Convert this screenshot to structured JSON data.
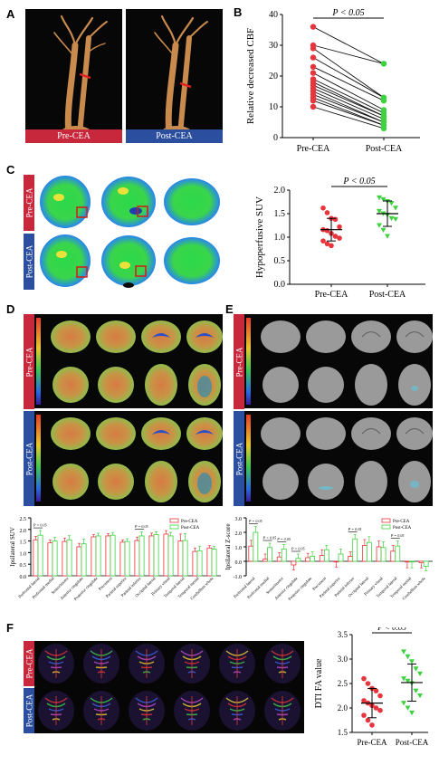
{
  "panels": {
    "A": "A",
    "B": "B",
    "C": "C",
    "D": "D",
    "E": "E",
    "F": "F"
  },
  "panel_a": {
    "pre": "Pre-CEA",
    "post": "Post-CEA"
  },
  "panel_c": {
    "pre": "Pre-CEA",
    "post": "Post-CEA"
  },
  "panel_d": {
    "pre": "Pre-CEA",
    "post": "Post-CEA"
  },
  "panel_e": {
    "pre": "Pre-CEA",
    "post": "Post-CEA"
  },
  "panel_f": {
    "pre": "Pre-CEA",
    "post": "Post-CEA"
  },
  "colors": {
    "pre": "#e8343c",
    "post": "#3fd23f",
    "red_strip": "#c8283c",
    "blue_strip": "#2b4f9e"
  },
  "chart_data": [
    {
      "id": "B",
      "type": "line",
      "ylabel": "Relative decreased CBF",
      "categories": [
        "Pre-CEA",
        "Post-CEA"
      ],
      "ylim": [
        0,
        40
      ],
      "yticks": [
        0,
        10,
        20,
        30,
        40
      ],
      "annotation": "P < 0.05",
      "pairs": [
        [
          36,
          24
        ],
        [
          30,
          24
        ],
        [
          29,
          13
        ],
        [
          26,
          13
        ],
        [
          23,
          12
        ],
        [
          21,
          9
        ],
        [
          19,
          8
        ],
        [
          18,
          7
        ],
        [
          17,
          7
        ],
        [
          16,
          6
        ],
        [
          15,
          5
        ],
        [
          14,
          5
        ],
        [
          13,
          4
        ],
        [
          12,
          4
        ],
        [
          10,
          3
        ]
      ]
    },
    {
      "id": "C",
      "type": "scatter",
      "ylabel": "Hypoperfusive SUV",
      "categories": [
        "Pre-CEA",
        "Post-CEA"
      ],
      "ylim": [
        0.0,
        2.0
      ],
      "yticks": [
        0.0,
        0.5,
        1.0,
        1.5,
        2.0
      ],
      "annotation": "P < 0.05",
      "series": [
        {
          "values": [
            1.62,
            1.52,
            1.4,
            1.38,
            1.22,
            1.16,
            1.14,
            1.08,
            1.02,
            0.98,
            0.92,
            0.86,
            0.82
          ],
          "mean": 1.16,
          "sd": 0.24
        },
        {
          "values": [
            1.84,
            1.8,
            1.76,
            1.72,
            1.62,
            1.55,
            1.5,
            1.47,
            1.4,
            1.38,
            1.25,
            1.15,
            1.02
          ],
          "mean": 1.5,
          "sd": 0.27
        }
      ]
    },
    {
      "id": "D",
      "type": "bar",
      "ylabel": "Ipsilateral SUV",
      "ylim": [
        0,
        2.5
      ],
      "yticks": [
        0.0,
        0.5,
        1.0,
        1.5,
        2.0,
        2.5
      ],
      "legend": [
        "Pre-CEA",
        "Post-CEA"
      ],
      "categories": [
        "Prefrontal lateral",
        "Prefrontal medial",
        "Sensorimotor",
        "Anterior cingulate",
        "Posterior cingulate",
        "Precuneus",
        "Parietal superior",
        "Parietal inferior",
        "Occipital lateral",
        "Primary visual",
        "Temporal lateral",
        "Temporal mesial",
        "Cerebellum whole"
      ],
      "series": [
        {
          "name": "Pre-CEA",
          "values": [
            1.55,
            1.42,
            1.48,
            1.25,
            1.68,
            1.72,
            1.45,
            1.52,
            1.72,
            1.8,
            1.5,
            1.05,
            1.2
          ]
        },
        {
          "name": "Post-CEA",
          "values": [
            1.75,
            1.5,
            1.55,
            1.38,
            1.72,
            1.75,
            1.48,
            1.72,
            1.78,
            1.72,
            1.52,
            1.08,
            1.15
          ]
        }
      ],
      "errors": [
        [
          0.15,
          0.2
        ],
        [
          0.12,
          0.15
        ],
        [
          0.15,
          0.18
        ],
        [
          0.15,
          0.2
        ],
        [
          0.1,
          0.12
        ],
        [
          0.1,
          0.12
        ],
        [
          0.1,
          0.12
        ],
        [
          0.15,
          0.18
        ],
        [
          0.12,
          0.12
        ],
        [
          0.15,
          0.15
        ],
        [
          0.3,
          0.3
        ],
        [
          0.15,
          0.2
        ],
        [
          0.1,
          0.12
        ]
      ],
      "annotations": [
        {
          "index": 0,
          "text": "P = 0.05"
        },
        {
          "index": 7,
          "text": "P = 0.05"
        }
      ]
    },
    {
      "id": "E",
      "type": "bar",
      "ylabel": "Ipsilateral Z-score",
      "ylim": [
        -1,
        3
      ],
      "yticks": [
        -1,
        0,
        1,
        2,
        3
      ],
      "legend": [
        "Pre-CEA",
        "Post-CEA"
      ],
      "categories": [
        "Prefrontal lateral",
        "Prefrontal medial",
        "Sensorimotor",
        "Anterior cingulate",
        "Posterior cingulate",
        "Precuneus",
        "Parietal superior",
        "Parietal inferior",
        "Occipital lateral",
        "Primary visual",
        "Temporal lateral",
        "Temporal mesial",
        "Cerebellum whole"
      ],
      "series": [
        {
          "name": "Pre-CEA",
          "values": [
            1.05,
            0.15,
            0.3,
            -0.25,
            0.25,
            0.4,
            -0.05,
            0.35,
            1.1,
            1.0,
            0.7,
            -0.05,
            -0.1
          ]
        },
        {
          "name": "Post-CEA",
          "values": [
            2.0,
            0.95,
            0.85,
            0.2,
            0.35,
            0.8,
            0.5,
            1.55,
            1.3,
            0.95,
            1.05,
            -0.05,
            -0.35
          ]
        }
      ],
      "errors": [
        [
          0.4,
          0.4
        ],
        [
          0.35,
          0.3
        ],
        [
          0.3,
          0.3
        ],
        [
          0.35,
          0.3
        ],
        [
          0.3,
          0.3
        ],
        [
          0.4,
          0.3
        ],
        [
          0.35,
          0.35
        ],
        [
          0.3,
          0.3
        ],
        [
          0.4,
          0.4
        ],
        [
          0.4,
          0.4
        ],
        [
          0.4,
          0.35
        ],
        [
          0.4,
          0.4
        ],
        [
          0.35,
          0.3
        ]
      ],
      "annotations": [
        {
          "index": 0,
          "text": "P = 0.05"
        },
        {
          "index": 1,
          "text": "P = 0.05"
        },
        {
          "index": 2,
          "text": "P = 0.05"
        },
        {
          "index": 3,
          "text": "P = 0.05"
        },
        {
          "index": 7,
          "text": "P = 0.05"
        },
        {
          "index": 10,
          "text": "P = 0.05"
        }
      ]
    },
    {
      "id": "F",
      "type": "scatter",
      "ylabel": "DTI FA value",
      "categories": [
        "Pre-CEA",
        "Post-CEA"
      ],
      "ylim": [
        1.5,
        3.5
      ],
      "yticks": [
        1.5,
        2.0,
        2.5,
        3.0,
        3.5
      ],
      "annotation": "P < 0.05",
      "series": [
        {
          "values": [
            2.6,
            2.5,
            2.4,
            2.35,
            2.25,
            2.15,
            2.1,
            2.05,
            2.0,
            1.95,
            1.85,
            1.75,
            1.65
          ],
          "mean": 2.1,
          "sd": 0.3
        },
        {
          "values": [
            3.15,
            3.05,
            2.95,
            2.8,
            2.7,
            2.6,
            2.55,
            2.5,
            2.35,
            2.25,
            2.1,
            2.0,
            1.9
          ],
          "mean": 2.52,
          "sd": 0.38
        }
      ]
    }
  ]
}
